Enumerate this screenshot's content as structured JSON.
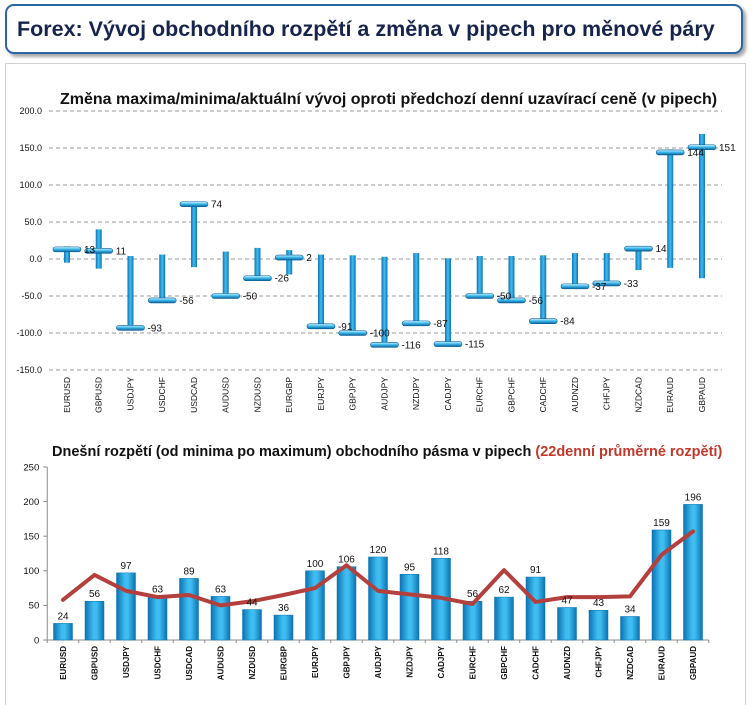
{
  "header": {
    "title": "Forex: Vývoj obchodního rozpětí a změna v pipech pro měnové páry"
  },
  "colors": {
    "header_border": "#2b65a8",
    "header_text": "#17244d",
    "marker_light": "#d2f0fc",
    "marker_dark": "#0b5f96",
    "bar_light": "#3fbdf0",
    "bar_dark": "#0b73b3",
    "avg_line": "#b4403e",
    "note_red": "#c0392b",
    "grid": "#9a9a9a",
    "axis": "#8c8c8c"
  },
  "chart_data": [
    {
      "type": "bar",
      "title": "Změna maxima/minima/aktuální vývoj oproti předchozí denní uzavírací ceně (v pipech)",
      "categories": [
        "EURUSD",
        "GBPUSD",
        "USDJPY",
        "USDCHF",
        "USDCAD",
        "AUDUSD",
        "NZDUSD",
        "EURGBP",
        "EURJPY",
        "GBPJPY",
        "AUDJPY",
        "NZDJPY",
        "CADJPY",
        "EURCHF",
        "GBPCHF",
        "CADCHF",
        "AUDNZD",
        "CHFJPY",
        "NZDCAD",
        "EURAUD",
        "GBPAUD"
      ],
      "max": [
        17,
        40,
        4,
        6,
        76,
        10,
        15,
        12,
        6,
        5,
        3,
        8,
        1,
        4,
        4,
        5,
        8,
        8,
        17,
        148,
        169
      ],
      "min": [
        -5,
        -13,
        -95,
        -57,
        -11,
        -52,
        -28,
        -21,
        -92,
        -101,
        -117,
        -88,
        -116,
        -52,
        -57,
        -85,
        -39,
        -35,
        -15,
        -12,
        -26
      ],
      "current": [
        13,
        11,
        -93,
        -56,
        74,
        -50,
        -26,
        2,
        -91,
        -100,
        -116,
        -87,
        -115,
        -50,
        -56,
        -84,
        -37,
        -33,
        14,
        144,
        151
      ],
      "ylim": [
        -150,
        200
      ],
      "ytick_labels": [
        "200.0",
        "150.0",
        "100.0",
        "50.0",
        "0.0",
        "-50.0",
        "-100.0",
        "-150.0"
      ],
      "grid": true
    },
    {
      "type": "bar",
      "title": "Dnešní rozpětí (od minima po maximum) obchodního pásma v pipech",
      "title_note": "(22denní průměrné rozpětí)",
      "categories": [
        "EURUSD",
        "GBPUSD",
        "USDJPY",
        "USDCHF",
        "USDCAD",
        "AUDUSD",
        "NZDUSD",
        "EURGBP",
        "EURJPY",
        "GBPJPY",
        "AUDJPY",
        "NZDJPY",
        "CADJPY",
        "EURCHF",
        "GBPCHF",
        "CADCHF",
        "AUDNZD",
        "CHFJPY",
        "NZDCAD",
        "EURAUD",
        "GBPAUD"
      ],
      "series": [
        {
          "type": "bar",
          "values": [
            24,
            56,
            97,
            63,
            89,
            63,
            44,
            36,
            100,
            106,
            120,
            95,
            118,
            56,
            62,
            91,
            47,
            43,
            34,
            159,
            196
          ]
        },
        {
          "type": "line",
          "values": [
            58,
            94,
            71,
            62,
            65,
            50,
            56,
            65,
            75,
            108,
            71,
            66,
            61,
            52,
            101,
            55,
            62,
            62,
            63,
            123,
            157
          ]
        }
      ],
      "ylim": [
        0,
        250
      ],
      "ytick_labels": [
        "0",
        "50",
        "100",
        "150",
        "200",
        "250"
      ],
      "grid": false
    }
  ]
}
